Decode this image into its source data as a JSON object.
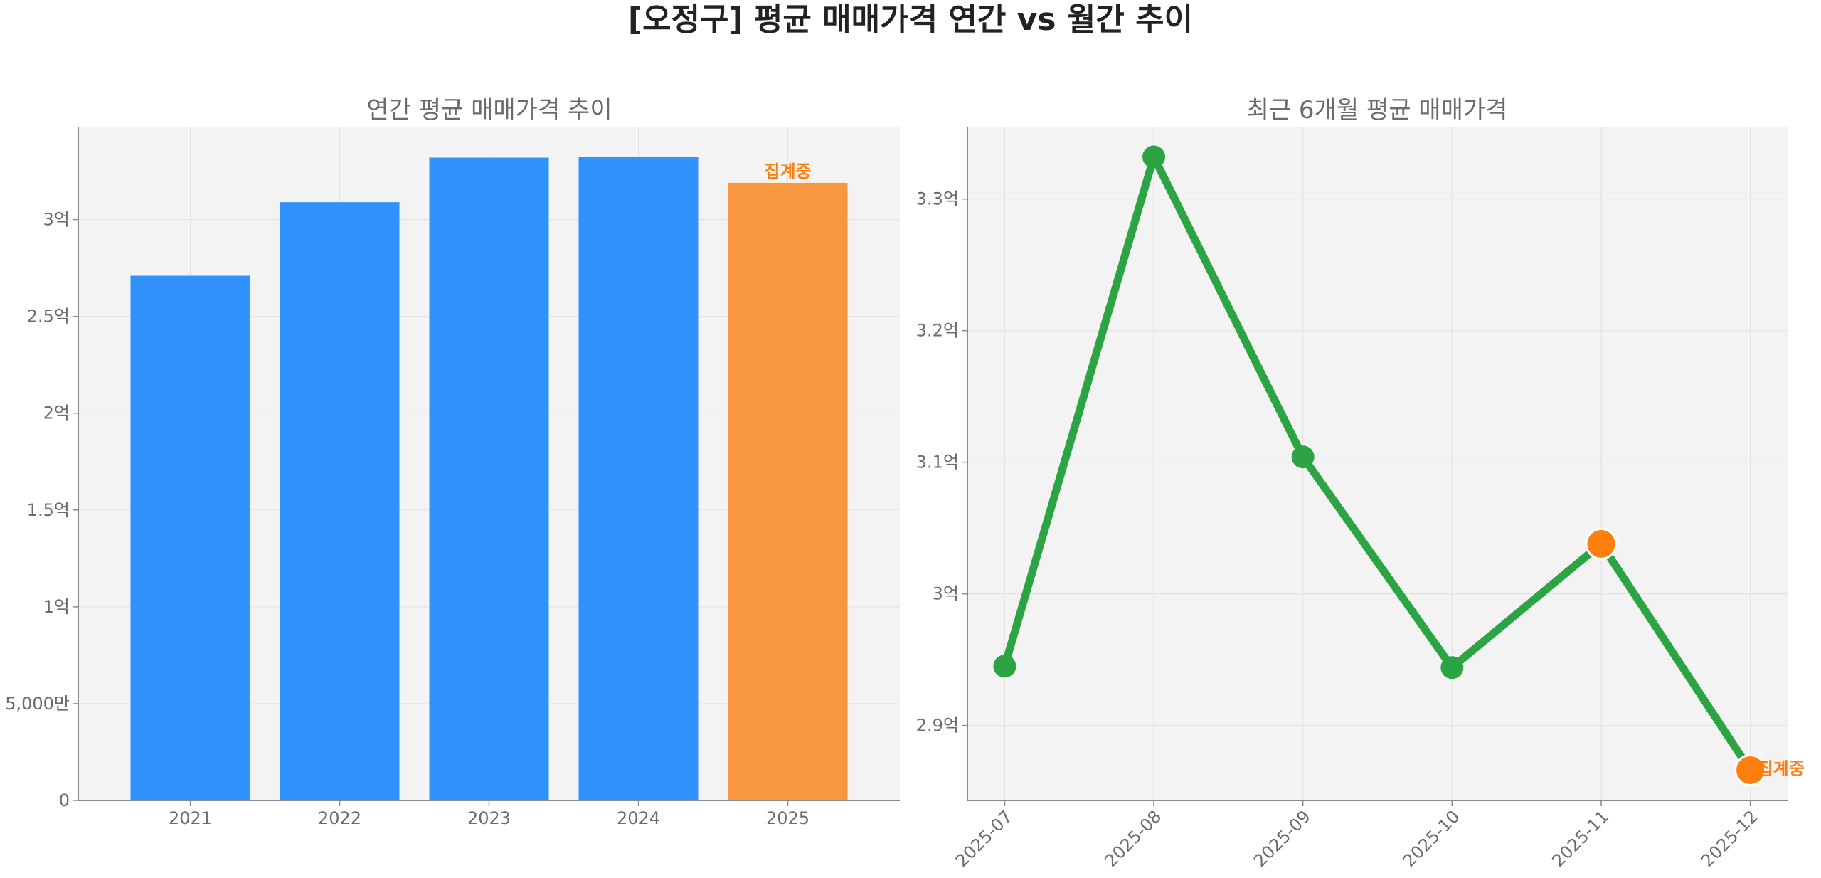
{
  "suptitle": "[오정구] 평균 매매가격 연간 vs 월간 추이",
  "chart_data": [
    {
      "type": "bar",
      "title": "연간 평균 매매가격 추이",
      "xlabel": "",
      "ylabel": "",
      "categories": [
        "2021",
        "2022",
        "2023",
        "2024",
        "2025"
      ],
      "values": [
        27100,
        30900,
        33200,
        33250,
        31900
      ],
      "value_unit": "만원",
      "ylim": [
        0,
        34800
      ],
      "yticks": [
        0,
        5000,
        10000,
        15000,
        20000,
        25000,
        30000
      ],
      "ytick_labels": [
        "0",
        "5,000만",
        "1억",
        "1.5억",
        "2억",
        "2.5억",
        "3억"
      ],
      "bar_colors": [
        "#3192fb",
        "#3192fb",
        "#3192fb",
        "#3192fb",
        "#f8973f"
      ],
      "annotations": [
        {
          "category": "2025",
          "text": "집계중",
          "color": "#ff7f0e"
        }
      ],
      "grid": true,
      "legend": "none"
    },
    {
      "type": "line",
      "title": "최근 6개월 평균 매매가격",
      "xlabel": "",
      "ylabel": "",
      "x": [
        "2025-07",
        "2025-08",
        "2025-09",
        "2025-10",
        "2025-11",
        "2025-12"
      ],
      "series": [
        {
          "values": [
            29450,
            33320,
            31040,
            29440,
            30380,
            28660
          ],
          "color": "#2ca443"
        }
      ],
      "value_unit": "만원",
      "ylim": [
        28430,
        33550
      ],
      "yticks": [
        29000,
        30000,
        31000,
        32000,
        33000
      ],
      "ytick_labels": [
        "2.9억",
        "3억",
        "3.1억",
        "3.2억",
        "3.3억"
      ],
      "highlight_points": [
        {
          "x": "2025-11",
          "color": "#ff7f0e"
        },
        {
          "x": "2025-12",
          "color": "#ff7f0e"
        }
      ],
      "annotations": [
        {
          "x": "2025-12",
          "text": "집계중",
          "color": "#ff7f0e"
        }
      ],
      "xtick_rotation": 45,
      "grid": true,
      "legend": "none"
    }
  ]
}
